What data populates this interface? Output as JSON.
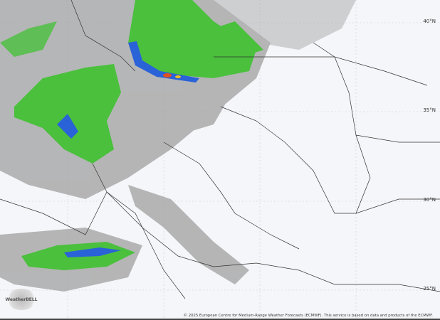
{
  "map": {
    "latitude_labels": [
      "40°N",
      "35°N",
      "30°N",
      "25°N"
    ],
    "credit": "© 2025 European Centre for Medium-Range Weather Forecasts (ECMWF). This service is based on data and products of the ECMWF.",
    "logo_text": "WeatherBELL",
    "colors": {
      "background": "#f4f6f9",
      "light_precip": "#9a9a9a",
      "moderate_precip": "#44c23a",
      "heavy_precip": "#2a62d8",
      "extreme_precip": "#e05020"
    }
  }
}
